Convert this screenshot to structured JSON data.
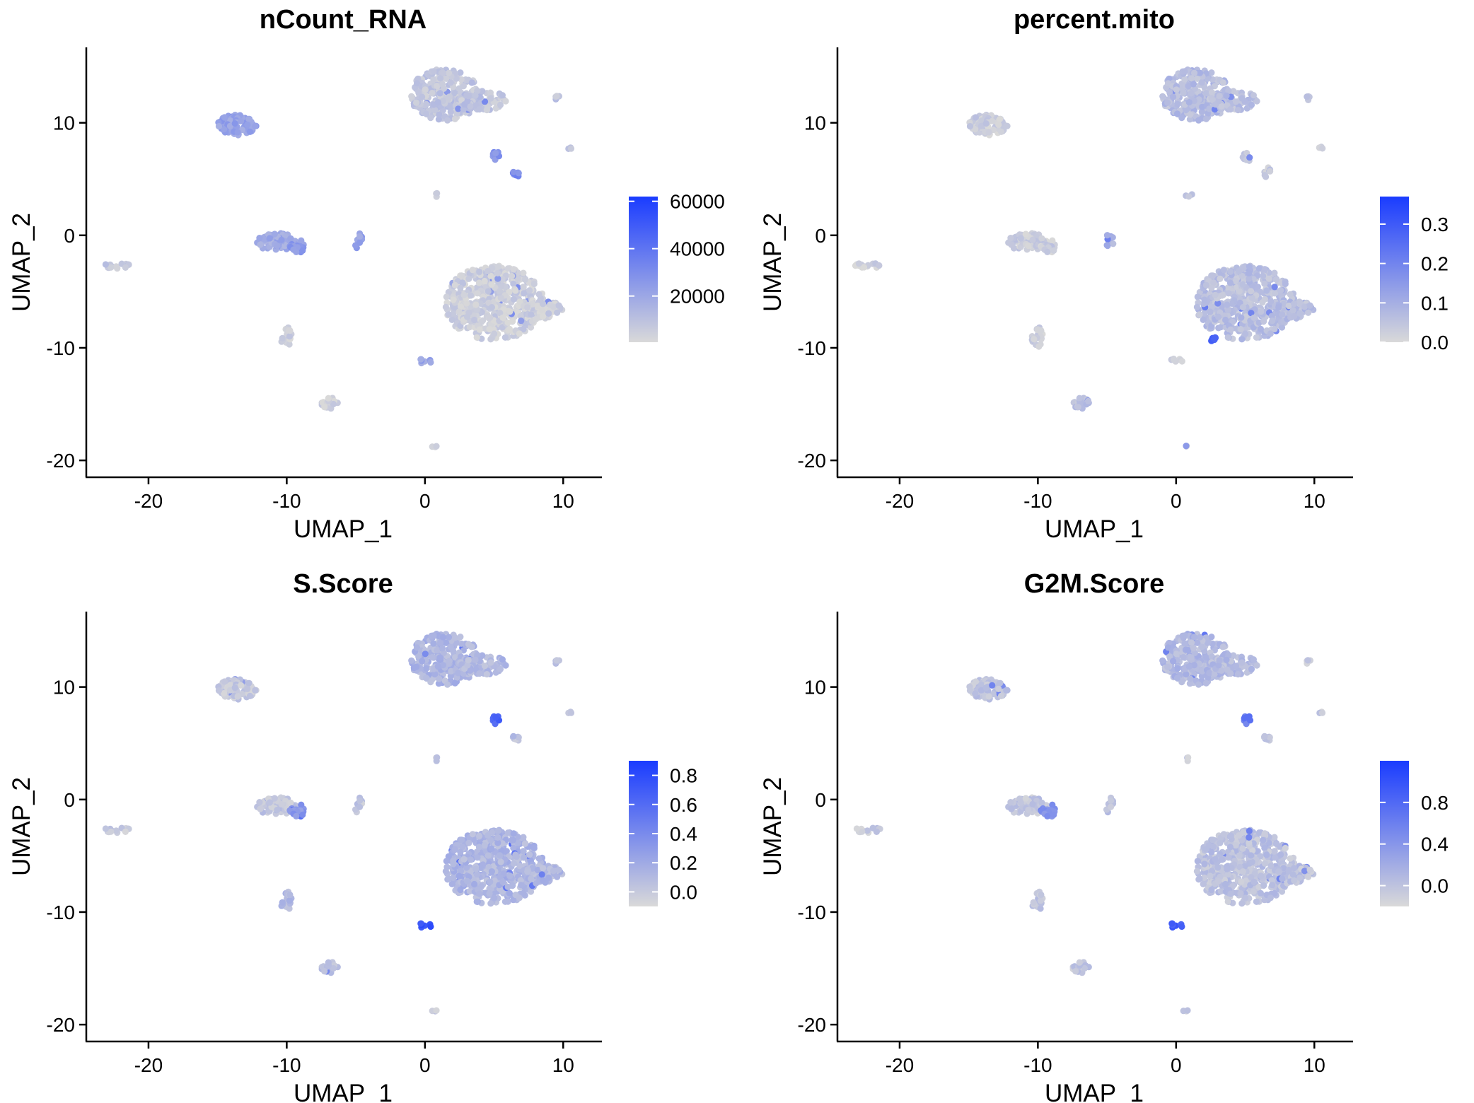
{
  "chart_data": [
    {
      "type": "scatter",
      "title": "nCount_RNA",
      "xlabel": "UMAP_1",
      "ylabel": "UMAP_2",
      "xlim": [
        -24.5,
        12.8
      ],
      "ylim": [
        -21.5,
        16.7
      ],
      "xticks": [
        "-20",
        "-10",
        "0",
        "10"
      ],
      "yticks": [
        "10",
        "0",
        "-10",
        "-20"
      ],
      "colorbar": {
        "min": 500,
        "max": 62000,
        "ticks": [
          "60000",
          "40000",
          "20000"
        ],
        "tick_values": [
          60000,
          40000,
          20000
        ],
        "low_color": "#d9d9d9",
        "high_color": "#1a3cff"
      },
      "clusters": [
        {
          "cx": 1.5,
          "cy": 12.5,
          "rx": 2.6,
          "ry": 2.3,
          "n": 260,
          "level": 0.12
        },
        {
          "cx": 4.2,
          "cy": 12.0,
          "rx": 1.8,
          "ry": 0.9,
          "n": 70,
          "level": 0.12
        },
        {
          "cx": -13.6,
          "cy": 9.8,
          "rx": 1.4,
          "ry": 0.9,
          "n": 90,
          "level": 0.35
        },
        {
          "cx": -10.7,
          "cy": -0.6,
          "rx": 1.5,
          "ry": 0.8,
          "n": 75,
          "level": 0.3
        },
        {
          "cx": -9.2,
          "cy": -1.0,
          "rx": 0.6,
          "ry": 0.6,
          "n": 20,
          "level": 0.38
        },
        {
          "cx": 5.0,
          "cy": -6.0,
          "rx": 3.6,
          "ry": 3.3,
          "n": 480,
          "level": 0.06
        },
        {
          "cx": 8.5,
          "cy": -6.6,
          "rx": 1.5,
          "ry": 0.8,
          "n": 60,
          "level": 0.06
        },
        {
          "cx": -10.0,
          "cy": -9.0,
          "rx": 0.45,
          "ry": 0.9,
          "n": 22,
          "level": 0.05
        },
        {
          "cx": -6.9,
          "cy": -14.9,
          "rx": 0.6,
          "ry": 0.5,
          "n": 20,
          "level": 0.05
        },
        {
          "cx": -22.5,
          "cy": -2.7,
          "rx": 1.2,
          "ry": 0.25,
          "n": 14,
          "level": 0.1
        },
        {
          "cx": 5.1,
          "cy": 7.0,
          "rx": 0.3,
          "ry": 0.5,
          "n": 10,
          "level": 0.45
        },
        {
          "cx": 6.6,
          "cy": 5.6,
          "rx": 0.25,
          "ry": 0.45,
          "n": 9,
          "level": 0.5
        },
        {
          "cx": -4.8,
          "cy": -0.5,
          "rx": 0.3,
          "ry": 0.7,
          "n": 10,
          "level": 0.35
        },
        {
          "cx": 0.0,
          "cy": -11.2,
          "rx": 0.5,
          "ry": 0.25,
          "n": 7,
          "level": 0.35
        },
        {
          "cx": 9.6,
          "cy": 12.2,
          "rx": 0.2,
          "ry": 0.2,
          "n": 4,
          "level": 0.15
        },
        {
          "cx": 10.4,
          "cy": 7.7,
          "rx": 0.2,
          "ry": 0.2,
          "n": 3,
          "level": 0.1
        },
        {
          "cx": 0.9,
          "cy": 3.6,
          "rx": 0.3,
          "ry": 0.2,
          "n": 3,
          "level": 0.1
        },
        {
          "cx": 0.7,
          "cy": -18.9,
          "rx": 0.25,
          "ry": 0.2,
          "n": 3,
          "level": 0.05
        }
      ]
    },
    {
      "type": "scatter",
      "title": "percent.mito",
      "xlabel": "UMAP_1",
      "ylabel": "UMAP_2",
      "xlim": [
        -24.5,
        12.8
      ],
      "ylim": [
        -21.5,
        16.7
      ],
      "xticks": [
        "-20",
        "-10",
        "0",
        "10"
      ],
      "yticks": [
        "10",
        "0",
        "-10",
        "-20"
      ],
      "colorbar": {
        "min": 0.0,
        "max": 0.37,
        "ticks": [
          "0.3",
          "0.2",
          "0.1",
          "0.0"
        ],
        "tick_values": [
          0.3,
          0.2,
          0.1,
          0.0
        ],
        "low_color": "#d9d9d9",
        "high_color": "#1a3cff"
      },
      "clusters": [
        {
          "cx": 1.5,
          "cy": 12.5,
          "rx": 2.6,
          "ry": 2.3,
          "n": 260,
          "level": 0.18
        },
        {
          "cx": 4.2,
          "cy": 12.0,
          "rx": 1.8,
          "ry": 0.9,
          "n": 70,
          "level": 0.15
        },
        {
          "cx": -13.6,
          "cy": 9.8,
          "rx": 1.4,
          "ry": 0.9,
          "n": 90,
          "level": 0.08
        },
        {
          "cx": -10.7,
          "cy": -0.6,
          "rx": 1.5,
          "ry": 0.8,
          "n": 75,
          "level": 0.08
        },
        {
          "cx": -9.2,
          "cy": -1.0,
          "rx": 0.6,
          "ry": 0.6,
          "n": 20,
          "level": 0.08
        },
        {
          "cx": 5.0,
          "cy": -6.0,
          "rx": 3.6,
          "ry": 3.3,
          "n": 480,
          "level": 0.16
        },
        {
          "cx": 8.5,
          "cy": -6.6,
          "rx": 1.5,
          "ry": 0.8,
          "n": 60,
          "level": 0.16
        },
        {
          "cx": 2.6,
          "cy": -9.2,
          "rx": 0.5,
          "ry": 0.3,
          "n": 8,
          "level": 0.75
        },
        {
          "cx": -10.0,
          "cy": -9.0,
          "rx": 0.45,
          "ry": 0.9,
          "n": 22,
          "level": 0.05
        },
        {
          "cx": -6.9,
          "cy": -14.9,
          "rx": 0.6,
          "ry": 0.5,
          "n": 20,
          "level": 0.15
        },
        {
          "cx": -22.5,
          "cy": -2.7,
          "rx": 1.2,
          "ry": 0.25,
          "n": 14,
          "level": 0.05
        },
        {
          "cx": 5.1,
          "cy": 7.0,
          "rx": 0.3,
          "ry": 0.5,
          "n": 10,
          "level": 0.1
        },
        {
          "cx": 6.6,
          "cy": 5.6,
          "rx": 0.25,
          "ry": 0.45,
          "n": 9,
          "level": 0.1
        },
        {
          "cx": -4.8,
          "cy": -0.5,
          "rx": 0.3,
          "ry": 0.7,
          "n": 10,
          "level": 0.25
        },
        {
          "cx": 0.0,
          "cy": -11.2,
          "rx": 0.5,
          "ry": 0.25,
          "n": 7,
          "level": 0.1
        },
        {
          "cx": 9.6,
          "cy": 12.2,
          "rx": 0.2,
          "ry": 0.2,
          "n": 4,
          "level": 0.1
        },
        {
          "cx": 10.4,
          "cy": 7.7,
          "rx": 0.2,
          "ry": 0.2,
          "n": 3,
          "level": 0.1
        },
        {
          "cx": 0.9,
          "cy": 3.6,
          "rx": 0.3,
          "ry": 0.2,
          "n": 3,
          "level": 0.1
        },
        {
          "cx": 0.7,
          "cy": -18.9,
          "rx": 0.25,
          "ry": 0.2,
          "n": 3,
          "level": 0.05
        }
      ]
    },
    {
      "type": "scatter",
      "title": "S.Score",
      "xlabel": "UMAP_1",
      "ylabel": "UMAP_2",
      "xlim": [
        -24.5,
        12.8
      ],
      "ylim": [
        -21.5,
        16.7
      ],
      "xticks": [
        "-20",
        "-10",
        "0",
        "10"
      ],
      "yticks": [
        "10",
        "0",
        "-10",
        "-20"
      ],
      "colorbar": {
        "min": -0.1,
        "max": 0.9,
        "ticks": [
          "0.8",
          "0.6",
          "0.4",
          "0.2",
          "0.0"
        ],
        "tick_values": [
          0.8,
          0.6,
          0.4,
          0.2,
          0.0
        ],
        "low_color": "#d9d9d9",
        "high_color": "#1a3cff"
      },
      "clusters": [
        {
          "cx": 1.5,
          "cy": 12.5,
          "rx": 2.6,
          "ry": 2.3,
          "n": 260,
          "level": 0.22
        },
        {
          "cx": 4.2,
          "cy": 12.0,
          "rx": 1.8,
          "ry": 0.9,
          "n": 70,
          "level": 0.2
        },
        {
          "cx": -13.6,
          "cy": 9.8,
          "rx": 1.4,
          "ry": 0.9,
          "n": 90,
          "level": 0.1
        },
        {
          "cx": -10.7,
          "cy": -0.6,
          "rx": 1.5,
          "ry": 0.8,
          "n": 75,
          "level": 0.12
        },
        {
          "cx": -9.2,
          "cy": -1.0,
          "rx": 0.6,
          "ry": 0.6,
          "n": 20,
          "level": 0.4
        },
        {
          "cx": 5.0,
          "cy": -6.0,
          "rx": 3.6,
          "ry": 3.3,
          "n": 480,
          "level": 0.22
        },
        {
          "cx": 8.5,
          "cy": -6.6,
          "rx": 1.5,
          "ry": 0.8,
          "n": 60,
          "level": 0.2
        },
        {
          "cx": -10.0,
          "cy": -9.0,
          "rx": 0.45,
          "ry": 0.9,
          "n": 22,
          "level": 0.2
        },
        {
          "cx": -6.9,
          "cy": -14.9,
          "rx": 0.6,
          "ry": 0.5,
          "n": 20,
          "level": 0.12
        },
        {
          "cx": -22.5,
          "cy": -2.7,
          "rx": 1.2,
          "ry": 0.25,
          "n": 14,
          "level": 0.1
        },
        {
          "cx": 5.1,
          "cy": 7.0,
          "rx": 0.3,
          "ry": 0.5,
          "n": 10,
          "level": 0.75
        },
        {
          "cx": 6.6,
          "cy": 5.6,
          "rx": 0.25,
          "ry": 0.45,
          "n": 9,
          "level": 0.15
        },
        {
          "cx": -4.8,
          "cy": -0.5,
          "rx": 0.3,
          "ry": 0.7,
          "n": 10,
          "level": 0.12
        },
        {
          "cx": 0.0,
          "cy": -11.2,
          "rx": 0.5,
          "ry": 0.25,
          "n": 7,
          "level": 0.85
        },
        {
          "cx": 9.6,
          "cy": 12.2,
          "rx": 0.2,
          "ry": 0.2,
          "n": 4,
          "level": 0.1
        },
        {
          "cx": 10.4,
          "cy": 7.7,
          "rx": 0.2,
          "ry": 0.2,
          "n": 3,
          "level": 0.1
        },
        {
          "cx": 0.9,
          "cy": 3.6,
          "rx": 0.3,
          "ry": 0.2,
          "n": 3,
          "level": 0.1
        },
        {
          "cx": 0.7,
          "cy": -18.9,
          "rx": 0.25,
          "ry": 0.2,
          "n": 3,
          "level": 0.1
        }
      ]
    },
    {
      "type": "scatter",
      "title": "G2M.Score",
      "xlabel": "UMAP_1",
      "ylabel": "UMAP_2",
      "xlim": [
        -24.5,
        12.8
      ],
      "ylim": [
        -21.5,
        16.7
      ],
      "xticks": [
        "-20",
        "-10",
        "0",
        "10"
      ],
      "yticks": [
        "10",
        "0",
        "-10",
        "-20"
      ],
      "colorbar": {
        "min": -0.2,
        "max": 1.2,
        "ticks": [
          "0.8",
          "0.4",
          "0.0"
        ],
        "tick_values": [
          0.8,
          0.4,
          0.0
        ],
        "low_color": "#d9d9d9",
        "high_color": "#1a3cff"
      },
      "clusters": [
        {
          "cx": 1.5,
          "cy": 12.5,
          "rx": 2.6,
          "ry": 2.3,
          "n": 260,
          "level": 0.2
        },
        {
          "cx": 4.2,
          "cy": 12.0,
          "rx": 1.8,
          "ry": 0.9,
          "n": 70,
          "level": 0.18
        },
        {
          "cx": -13.6,
          "cy": 9.8,
          "rx": 1.4,
          "ry": 0.9,
          "n": 90,
          "level": 0.12
        },
        {
          "cx": -10.7,
          "cy": -0.6,
          "rx": 1.5,
          "ry": 0.8,
          "n": 75,
          "level": 0.12
        },
        {
          "cx": -9.2,
          "cy": -1.0,
          "rx": 0.6,
          "ry": 0.6,
          "n": 20,
          "level": 0.45
        },
        {
          "cx": 5.0,
          "cy": -6.0,
          "rx": 3.6,
          "ry": 3.3,
          "n": 480,
          "level": 0.14
        },
        {
          "cx": 8.5,
          "cy": -6.6,
          "rx": 1.5,
          "ry": 0.8,
          "n": 60,
          "level": 0.14
        },
        {
          "cx": -10.0,
          "cy": -9.0,
          "rx": 0.45,
          "ry": 0.9,
          "n": 22,
          "level": 0.12
        },
        {
          "cx": -6.9,
          "cy": -14.9,
          "rx": 0.6,
          "ry": 0.5,
          "n": 20,
          "level": 0.12
        },
        {
          "cx": -22.5,
          "cy": -2.7,
          "rx": 1.2,
          "ry": 0.25,
          "n": 14,
          "level": 0.1
        },
        {
          "cx": 5.1,
          "cy": 7.0,
          "rx": 0.3,
          "ry": 0.5,
          "n": 10,
          "level": 0.6
        },
        {
          "cx": 6.6,
          "cy": 5.6,
          "rx": 0.25,
          "ry": 0.45,
          "n": 9,
          "level": 0.15
        },
        {
          "cx": -4.8,
          "cy": -0.5,
          "rx": 0.3,
          "ry": 0.7,
          "n": 10,
          "level": 0.12
        },
        {
          "cx": 0.0,
          "cy": -11.2,
          "rx": 0.5,
          "ry": 0.25,
          "n": 7,
          "level": 0.75
        },
        {
          "cx": 9.6,
          "cy": 12.2,
          "rx": 0.2,
          "ry": 0.2,
          "n": 4,
          "level": 0.1
        },
        {
          "cx": 10.4,
          "cy": 7.7,
          "rx": 0.2,
          "ry": 0.2,
          "n": 3,
          "level": 0.1
        },
        {
          "cx": 0.9,
          "cy": 3.6,
          "rx": 0.3,
          "ry": 0.2,
          "n": 3,
          "level": 0.1
        },
        {
          "cx": 0.7,
          "cy": -18.9,
          "rx": 0.25,
          "ry": 0.2,
          "n": 3,
          "level": 0.1
        }
      ]
    }
  ]
}
